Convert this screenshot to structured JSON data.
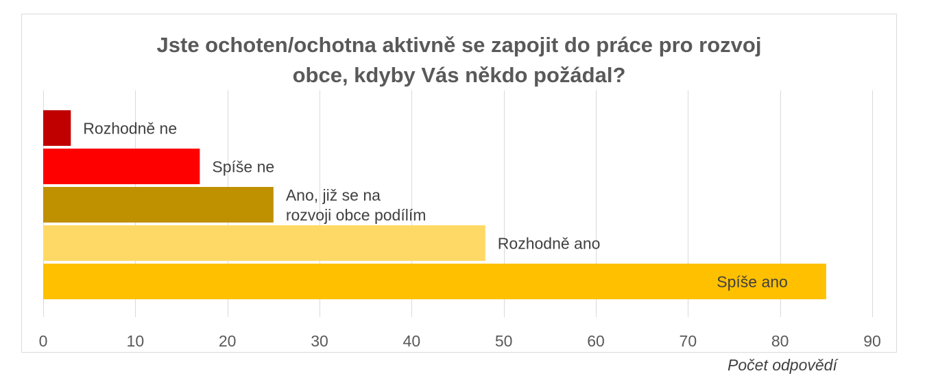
{
  "chart_data": {
    "type": "bar",
    "orientation": "horizontal",
    "title_lines": [
      "Jste ochoten/ochotna aktivně se zapojit do práce pro rozvoj",
      "obce, kdyby Vás někdo požádal?"
    ],
    "categories": [
      "Rozhodně ne",
      "Spíše ne",
      "Ano, již se na rozvoji obce podílím",
      "Rozhodně ano",
      "Spíše ano"
    ],
    "category_label_lines": [
      [
        "Rozhodně ne"
      ],
      [
        "Spíše ne"
      ],
      [
        "Ano, již se na",
        "rozvoji obce podílím"
      ],
      [
        "Rozhodně ano"
      ],
      [
        "Spíše ano"
      ]
    ],
    "values": [
      3,
      17,
      25,
      48,
      85
    ],
    "colors": [
      "#c00000",
      "#ff0000",
      "#bf9000",
      "#ffd966",
      "#ffc000"
    ],
    "label_inside": [
      false,
      false,
      false,
      false,
      true
    ],
    "xlim": [
      0,
      90
    ],
    "xticks": [
      0,
      10,
      20,
      30,
      40,
      50,
      60,
      70,
      80,
      90
    ],
    "xlabel": "Počet odpovědí",
    "ylabel": "",
    "grid": true,
    "legend": "none"
  }
}
